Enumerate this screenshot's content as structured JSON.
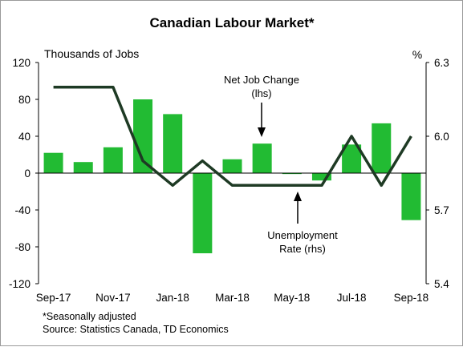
{
  "chart_data": {
    "type": "bar",
    "title": "Canadian Labour Market*",
    "y_left_label": "Thousands of Jobs",
    "y_right_label": "%",
    "ylim_left": [
      -120,
      120
    ],
    "ylim_right": [
      5.4,
      6.3
    ],
    "yticks_left": [
      120,
      80,
      40,
      0,
      -40,
      -80,
      -120
    ],
    "yticks_right": [
      6.3,
      6.0,
      5.7,
      5.4
    ],
    "ytick_labels_left": [
      "120",
      "80",
      "40",
      "0",
      "-40",
      "-80",
      "-120"
    ],
    "ytick_labels_right": [
      "6.3",
      "6.0",
      "5.7",
      "5.4"
    ],
    "categories": [
      "Sep-17",
      "Oct-17",
      "Nov-17",
      "Dec-17",
      "Jan-18",
      "Feb-18",
      "Mar-18",
      "Apr-18",
      "May-18",
      "Jun-18",
      "Jul-18",
      "Aug-18",
      "Sep-18"
    ],
    "xtick_labels": [
      "Sep-17",
      "",
      "Nov-17",
      "",
      "Jan-18",
      "",
      "Mar-18",
      "",
      "May-18",
      "",
      "Jul-18",
      "",
      "Sep-18"
    ],
    "series": [
      {
        "name": "Net Job Change (lhs)",
        "type": "bar",
        "axis": "left",
        "color": "#22bb33",
        "values": [
          22,
          12,
          28,
          80,
          64,
          -87,
          15,
          32,
          -1,
          -8,
          31,
          54,
          -51
        ]
      },
      {
        "name": "Unemployment Rate (rhs)",
        "type": "line",
        "axis": "right",
        "color": "#1e3a24",
        "values": [
          6.2,
          6.2,
          6.2,
          5.9,
          5.8,
          5.9,
          5.8,
          5.8,
          5.8,
          5.8,
          6.0,
          5.8,
          6.0
        ]
      }
    ],
    "annotations": [
      {
        "text": [
          "Net Job Change",
          "(lhs)"
        ],
        "points_to": "Mar-18 bar"
      },
      {
        "text": [
          "Unemployment",
          "Rate (rhs)"
        ],
        "points_to": "May-18 line"
      }
    ],
    "grid": false,
    "legend": "none"
  },
  "footnotes": [
    "*Seasonally adjusted",
    "Source: Statistics Canada, TD Economics"
  ]
}
